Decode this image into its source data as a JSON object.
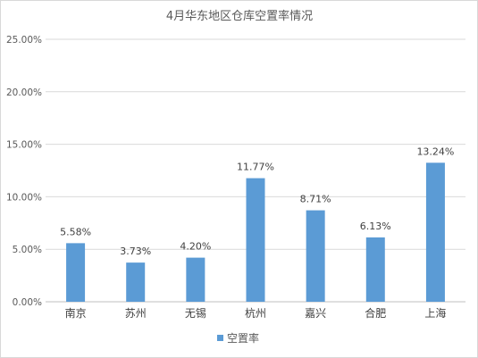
{
  "chart_data": {
    "type": "bar",
    "title": "4月华东地区仓库空置率情况",
    "categories": [
      "南京",
      "苏州",
      "无锡",
      "杭州",
      "嘉兴",
      "合肥",
      "上海"
    ],
    "series": [
      {
        "name": "空置率",
        "values": [
          5.58,
          3.73,
          4.2,
          11.77,
          8.71,
          6.13,
          13.24
        ],
        "labels": [
          "5.58%",
          "3.73%",
          "4.20%",
          "11.77%",
          "8.71%",
          "6.13%",
          "13.24%"
        ],
        "color": "#5b9bd5"
      }
    ],
    "ylim": [
      0,
      25
    ],
    "yticks": [
      "0.00%",
      "5.00%",
      "10.00%",
      "15.00%",
      "20.00%",
      "25.00%"
    ],
    "grid": true,
    "legend": "bottom",
    "xlabel": "",
    "ylabel": ""
  }
}
